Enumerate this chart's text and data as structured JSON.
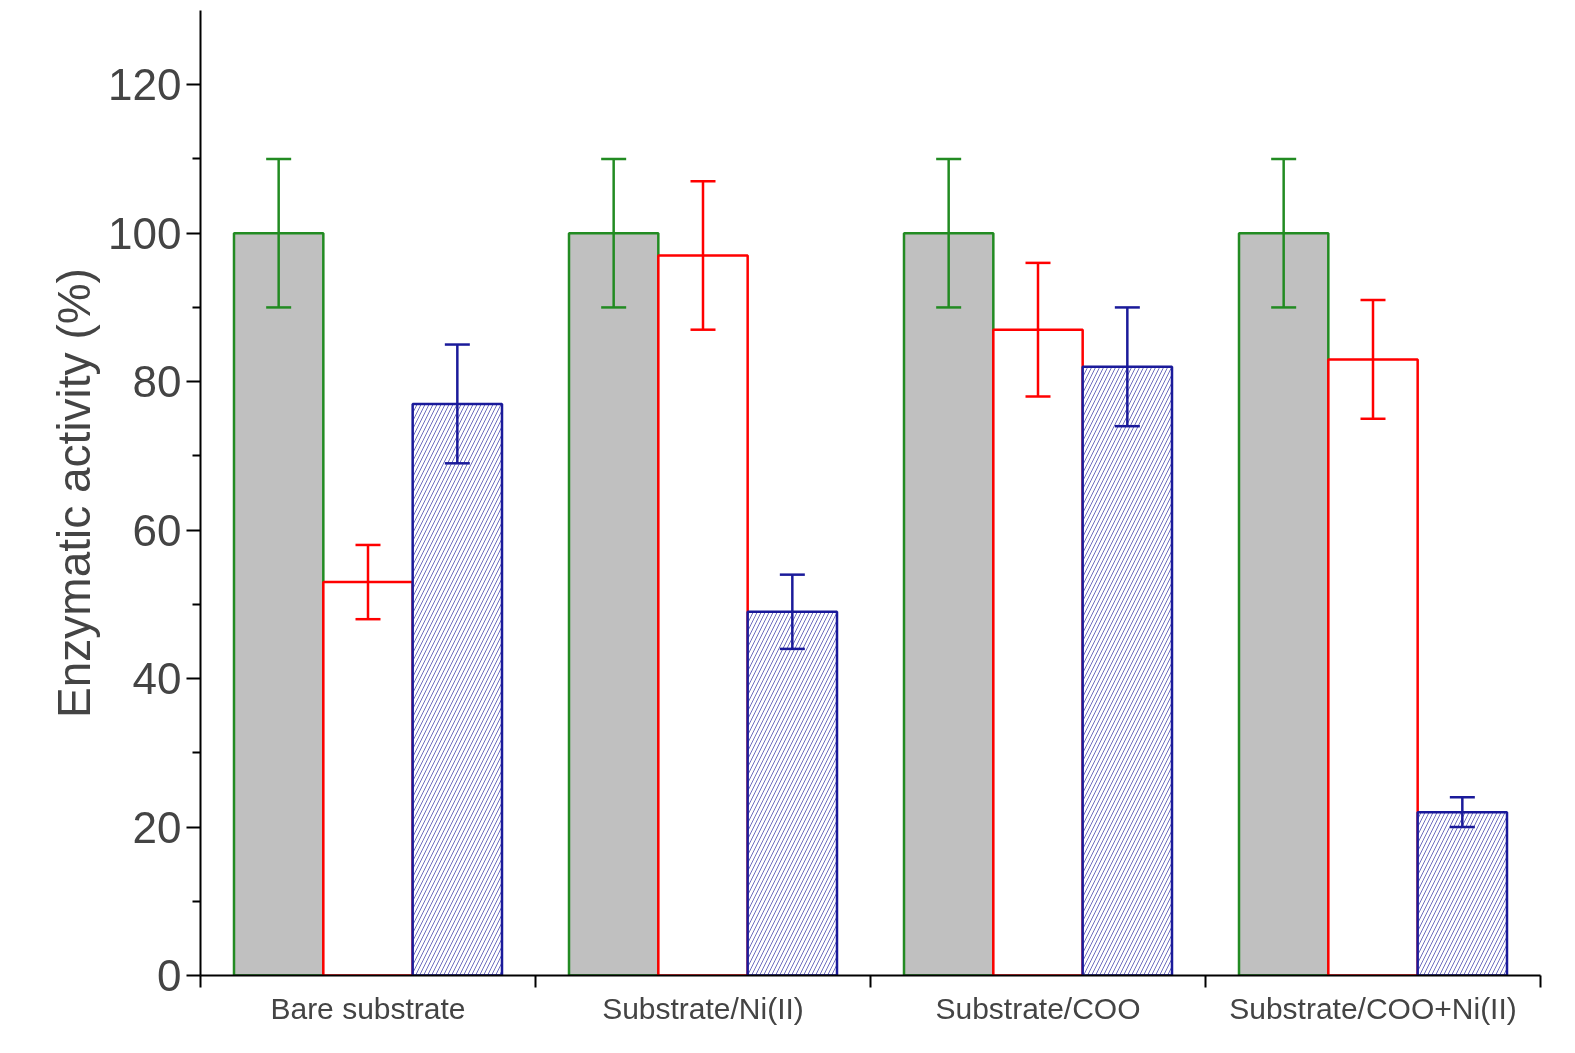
{
  "chart_data": {
    "type": "bar",
    "ylabel": "Enzymatic activity (%)",
    "categories": [
      "Bare substrate",
      "Substrate/Ni(II)",
      "Substrate/COO",
      "Substrate/COO+Ni(II)"
    ],
    "series": [
      {
        "color": "#228b22",
        "values": [
          100,
          100,
          100,
          100
        ],
        "errors": [
          10,
          10,
          10,
          10
        ]
      },
      {
        "color": "#ff0000",
        "values": [
          53,
          97,
          87,
          83
        ],
        "errors": [
          5,
          10,
          9,
          8
        ]
      },
      {
        "color": "#1a1a9a",
        "values": [
          77,
          49,
          82,
          22
        ],
        "errors": [
          8,
          5,
          8,
          2
        ]
      }
    ],
    "ylim": [
      0,
      130
    ],
    "yticks": [
      0,
      {
        "value": 10,
        "label": null
      },
      20,
      {
        "value": 30,
        "label": null
      },
      40,
      {
        "value": 50,
        "label": null
      },
      60,
      {
        "value": 70,
        "label": null
      },
      80,
      {
        "value": 90,
        "label": null
      },
      100,
      {
        "value": 110,
        "label": null
      },
      120
    ],
    "grid": false
  }
}
